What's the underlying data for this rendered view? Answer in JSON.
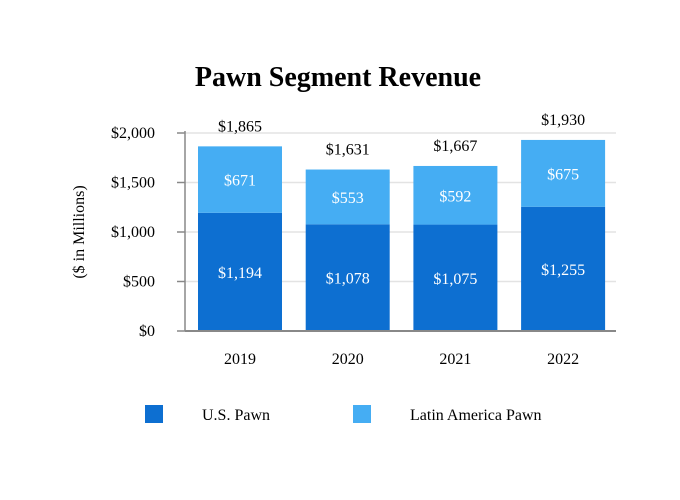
{
  "chart_data": {
    "type": "bar",
    "stacked": true,
    "title": "Pawn Segment Revenue",
    "xlabel": "",
    "ylabel": "($ in Millions)",
    "ylim": [
      0,
      2000
    ],
    "yticks": [
      0,
      500,
      1000,
      1500,
      2000
    ],
    "ytick_labels": [
      "$0",
      "$500",
      "$1,000",
      "$1,500",
      "$2,000"
    ],
    "grid": true,
    "legend_position": "bottom",
    "categories": [
      "2019",
      "2020",
      "2021",
      "2022"
    ],
    "series": [
      {
        "name": "U.S. Pawn",
        "color": "#0d6fd1",
        "values": [
          1194,
          1078,
          1075,
          1255
        ],
        "labels": [
          "$1,194",
          "$1,078",
          "$1,075",
          "$1,255"
        ]
      },
      {
        "name": "Latin America Pawn",
        "color": "#45adf3",
        "values": [
          671,
          553,
          592,
          675
        ],
        "labels": [
          "$671",
          "$553",
          "$592",
          "$675"
        ]
      }
    ],
    "totals": [
      1865,
      1631,
      1667,
      1930
    ],
    "total_labels": [
      "$1,865",
      "$1,631",
      "$1,667",
      "$1,930"
    ]
  }
}
